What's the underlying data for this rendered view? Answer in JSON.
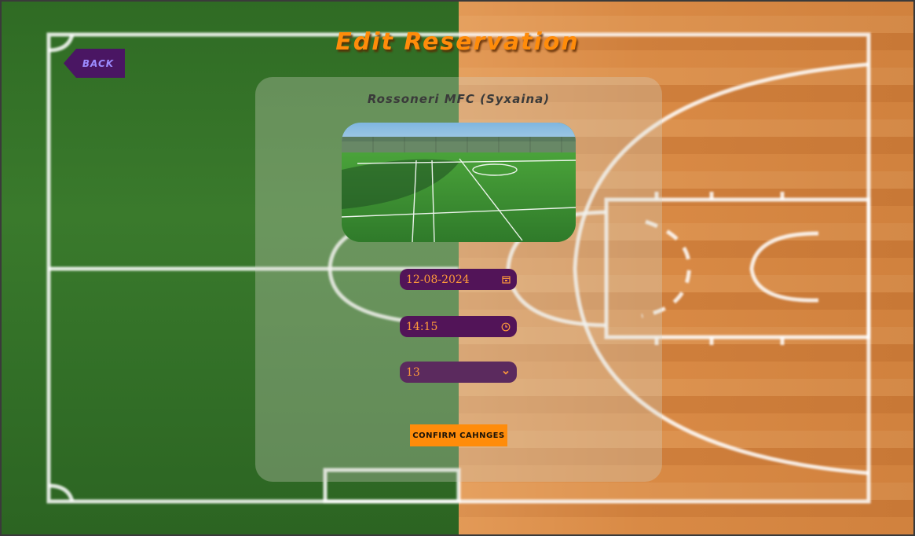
{
  "page": {
    "title": "Edit Reservation",
    "back_label": "BACK"
  },
  "venue": {
    "name": "Rossoneri MFC (Syxaina)",
    "photo_icon": "football-field-photo"
  },
  "form": {
    "date_value": "12-08-2024",
    "date_icon": "calendar-icon",
    "time_value": "14:15",
    "time_icon": "clock-icon",
    "select_value": "13",
    "select_icon": "chevron-down-icon",
    "confirm_label": "CONFIRM CAHNGES"
  },
  "colors": {
    "accent": "#ff8c0a",
    "purple": "#521458",
    "back_text": "#9c8cff"
  }
}
